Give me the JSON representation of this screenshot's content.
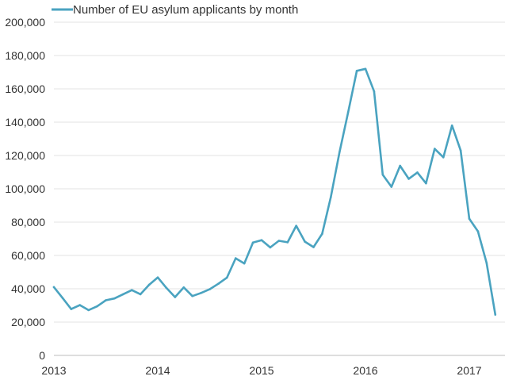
{
  "chart_data": {
    "type": "line",
    "title": "",
    "xlabel": "",
    "ylabel": "",
    "ylim": [
      0,
      200000
    ],
    "y_ticks": [
      0,
      20000,
      40000,
      60000,
      80000,
      100000,
      120000,
      140000,
      160000,
      180000,
      200000
    ],
    "y_tick_labels": [
      "0",
      "20,000",
      "40,000",
      "60,000",
      "80,000",
      "100,000",
      "120,000",
      "140,000",
      "160,000",
      "180,000",
      "200,000"
    ],
    "x_tick_labels": [
      "2013",
      "2014",
      "2015",
      "2016",
      "2017"
    ],
    "x_start": "2013-01",
    "grid": "horizontal",
    "legend_position": "top-left",
    "colors": {
      "series": "#4aa3c0",
      "grid": "#e3e3e3",
      "axis": "#bdbdbd",
      "text": "#333333"
    },
    "series": [
      {
        "name": "Number of EU asylum applicants by month",
        "x": [
          "2013-01",
          "2013-02",
          "2013-03",
          "2013-04",
          "2013-05",
          "2013-06",
          "2013-07",
          "2013-08",
          "2013-09",
          "2013-10",
          "2013-11",
          "2013-12",
          "2014-01",
          "2014-02",
          "2014-03",
          "2014-04",
          "2014-05",
          "2014-06",
          "2014-07",
          "2014-08",
          "2014-09",
          "2014-10",
          "2014-11",
          "2014-12",
          "2015-01",
          "2015-02",
          "2015-03",
          "2015-04",
          "2015-05",
          "2015-06",
          "2015-07",
          "2015-08",
          "2015-09",
          "2015-10",
          "2015-11",
          "2015-12",
          "2016-01",
          "2016-02",
          "2016-03",
          "2016-04",
          "2016-05",
          "2016-06",
          "2016-07",
          "2016-08",
          "2016-09",
          "2016-10",
          "2016-11",
          "2016-12",
          "2017-01",
          "2017-02",
          "2017-03",
          "2017-04"
        ],
        "values": [
          41000,
          34500,
          27800,
          30200,
          27200,
          29500,
          33100,
          34200,
          36700,
          39200,
          36700,
          42400,
          46800,
          40500,
          35000,
          40800,
          35600,
          37500,
          39700,
          43000,
          46700,
          58300,
          55200,
          67700,
          69200,
          64800,
          68800,
          67900,
          77800,
          68300,
          65000,
          73000,
          95000,
          122000,
          146000,
          170800,
          172000,
          158500,
          108500,
          101200,
          113800,
          106000,
          109800,
          103300,
          124000,
          118900,
          138000,
          123000,
          82000,
          74500,
          55500,
          24500
        ]
      }
    ]
  }
}
